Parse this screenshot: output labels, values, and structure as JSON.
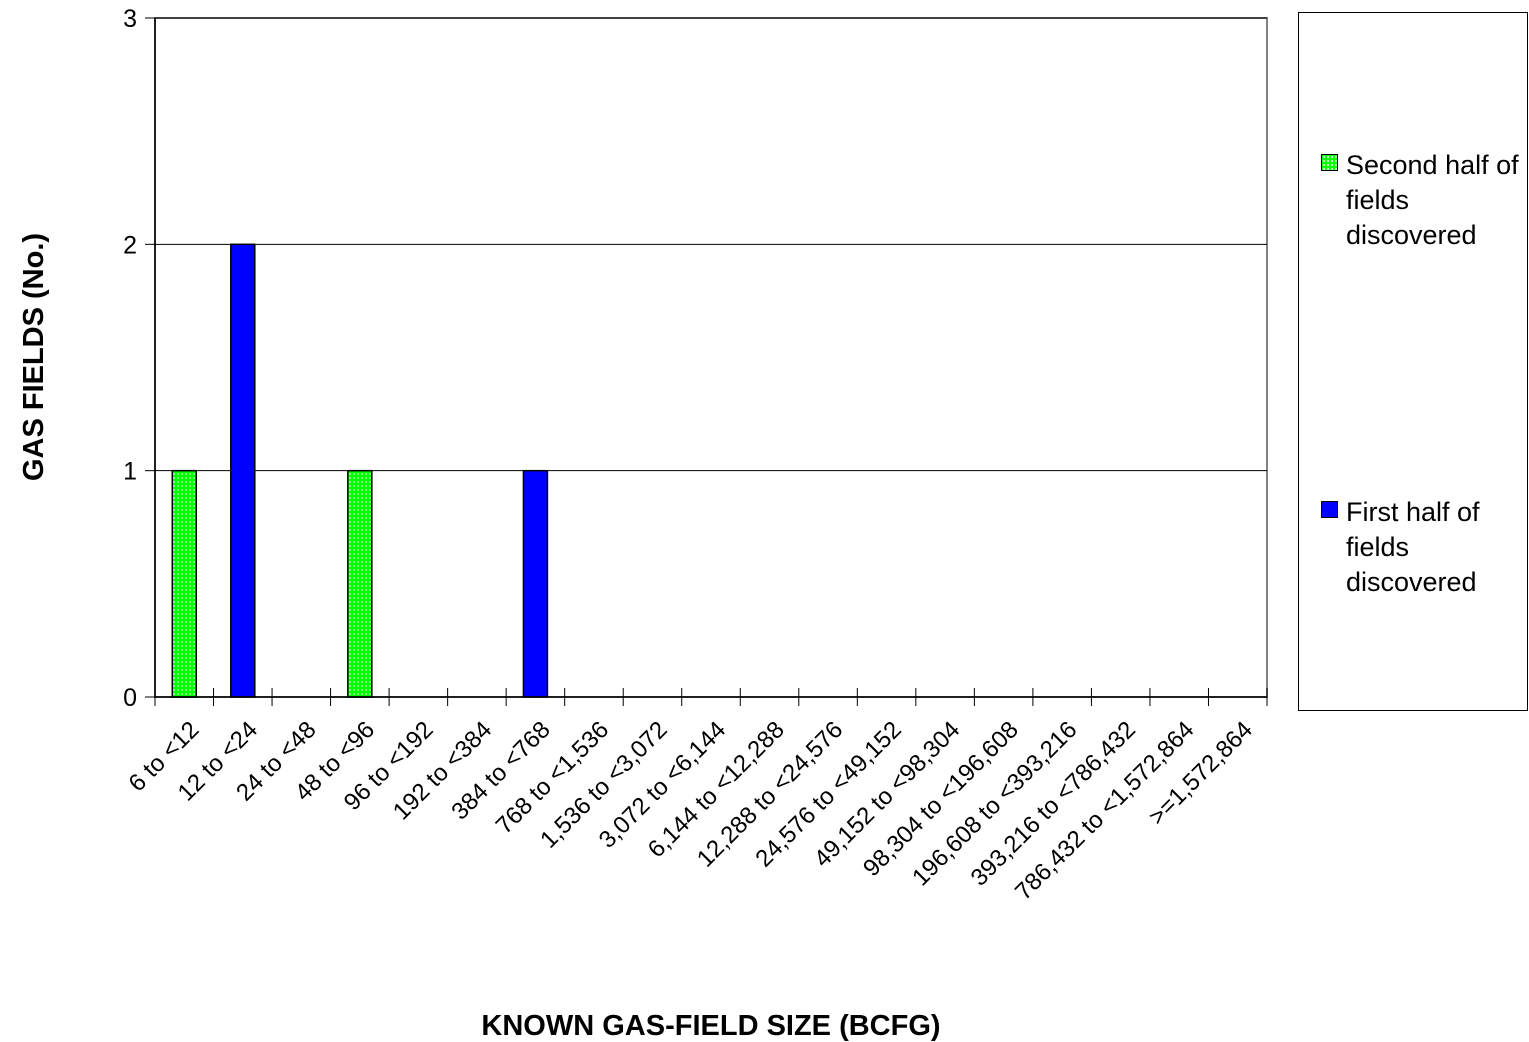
{
  "chart_data": {
    "type": "bar",
    "xlabel": "KNOWN GAS-FIELD SIZE (BCFG)",
    "ylabel": "GAS FIELDS (No.)",
    "ylim": [
      0,
      3
    ],
    "yticks": [
      "0",
      "1",
      "2",
      "3"
    ],
    "grid": true,
    "legend_position": "right",
    "categories": [
      "6 to <12",
      "12 to <24",
      "24 to <48",
      "48 to <96",
      "96 to <192",
      "192 to <384",
      "384 to <768",
      "768 to <1,536",
      "1,536 to <3,072",
      "3,072 to <6,144",
      "6,144 to <12,288",
      "12,288 to <24,576",
      "24,576 to <49,152",
      "49,152 to <98,304",
      "98,304 to <196,608",
      "196,608 to <393,216",
      "393,216 to <786,432",
      "786,432 to <1,572,864",
      ">=1,572,864"
    ],
    "series": [
      {
        "name": "Second half of fields discovered",
        "color": "#00ff00",
        "values": [
          1,
          0,
          0,
          1,
          0,
          0,
          0,
          0,
          0,
          0,
          0,
          0,
          0,
          0,
          0,
          0,
          0,
          0,
          0
        ]
      },
      {
        "name": "First half of fields discovered",
        "color": "#0000ff",
        "values": [
          0,
          2,
          0,
          0,
          0,
          0,
          1,
          0,
          0,
          0,
          0,
          0,
          0,
          0,
          0,
          0,
          0,
          0,
          0
        ]
      }
    ]
  },
  "legend": {
    "items": [
      {
        "label": "Second half of fields discovered",
        "swatch": "green-dotted"
      },
      {
        "label": "First half of fields discovered",
        "swatch": "blue"
      }
    ]
  }
}
